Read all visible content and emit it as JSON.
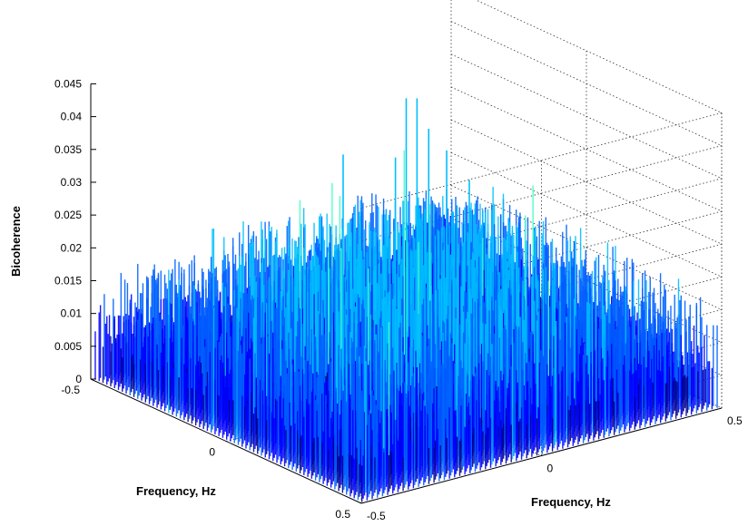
{
  "chart_data": {
    "type": "surface3d",
    "title": "",
    "zlabel": "Bicoherence",
    "xlabel": "Frequency, Hz",
    "ylabel": "Frequency, Hz",
    "xlim": [
      -0.5,
      0.5
    ],
    "ylim": [
      -0.5,
      0.5
    ],
    "zlim": [
      0,
      0.045
    ],
    "x_ticks": [
      "-0.5",
      "0",
      "0.5"
    ],
    "y_ticks": [
      "-0.5",
      "0",
      "0.5"
    ],
    "z_ticks": [
      "0",
      "0.005",
      "0.01",
      "0.015",
      "0.02",
      "0.025",
      "0.03",
      "0.035",
      "0.04",
      "0.045"
    ],
    "grid": true,
    "colormap": [
      "#00008f",
      "#0000ff",
      "#0060ff",
      "#00bfff",
      "#40ffbf",
      "#ffff00"
    ],
    "typical_z_range": [
      0.005,
      0.025
    ],
    "peaks": [
      {
        "x": 0.0,
        "y": 0.0,
        "z": 0.045
      },
      {
        "x": -0.12,
        "y": 0.12,
        "z": 0.041
      },
      {
        "x": 0.12,
        "y": -0.12,
        "z": 0.04
      },
      {
        "x": -0.25,
        "y": 0.25,
        "z": 0.032
      },
      {
        "x": 0.25,
        "y": -0.25,
        "z": 0.031
      },
      {
        "x": -0.45,
        "y": 0.45,
        "z": 0.022
      },
      {
        "x": 0.45,
        "y": -0.45,
        "z": 0.02
      },
      {
        "x": -0.1,
        "y": -0.1,
        "z": 0.036
      },
      {
        "x": 0.1,
        "y": 0.1,
        "z": 0.033
      }
    ]
  }
}
